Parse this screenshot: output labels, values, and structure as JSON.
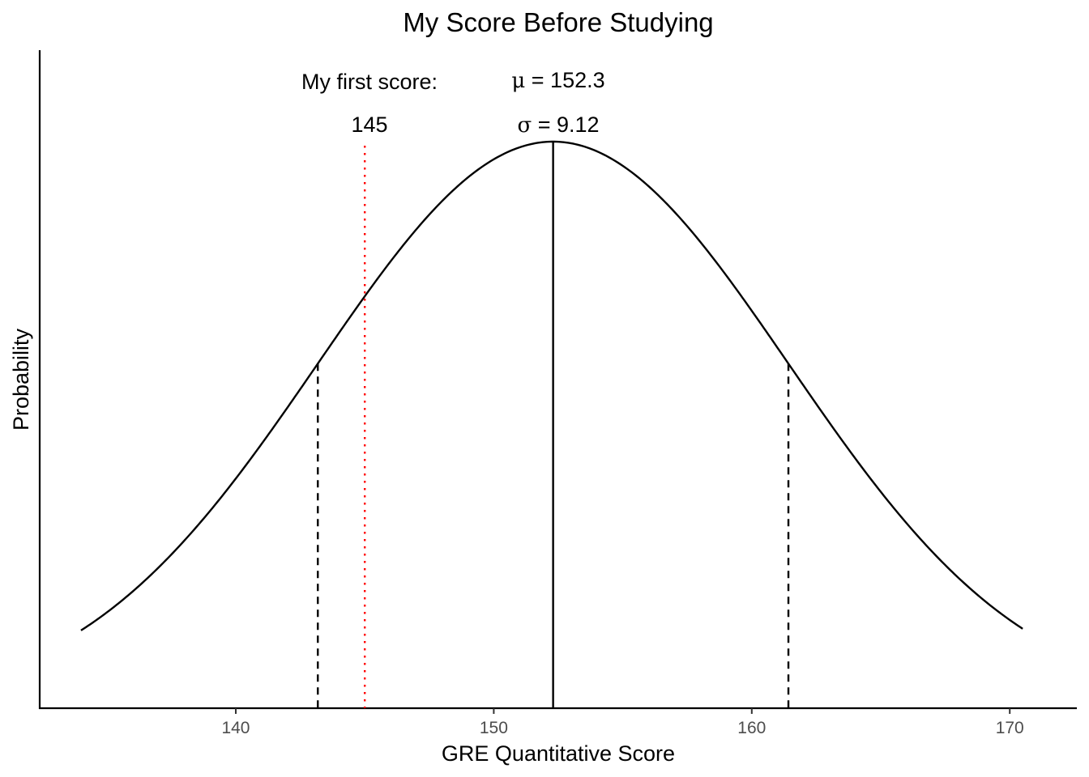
{
  "chart_data": {
    "type": "line",
    "title": "My Score Before Studying",
    "xlabel": "GRE Quantitative Score",
    "ylabel": "Probability",
    "xlim": [
      132.4,
      172.6
    ],
    "x_ticks": [
      140,
      150,
      160,
      170
    ],
    "x_tick_labels": [
      "140",
      "150",
      "160",
      "170"
    ],
    "curve_x_range": [
      134,
      170.5
    ],
    "grid": false,
    "legend": "none",
    "series": [
      {
        "distribution": "normal",
        "mean": 152.3,
        "sd": 9.12,
        "color": "#000000"
      }
    ],
    "reference_lines": {
      "mean": {
        "x": 152.3,
        "style": "solid",
        "color": "#000000"
      },
      "minus_one_sd": {
        "x": 143.18,
        "style": "dashed",
        "color": "#000000"
      },
      "plus_one_sd": {
        "x": 161.42,
        "style": "dashed",
        "color": "#000000"
      },
      "my_score": {
        "x": 145,
        "style": "dotted",
        "color": "#ff0000"
      }
    },
    "annotations": {
      "first_score_label": "My first score:",
      "first_score_value": "145",
      "mu_symbol": "μ",
      "mu_value": " = 152.3",
      "sigma_symbol": "σ",
      "sigma_value": " = 9.12"
    }
  }
}
